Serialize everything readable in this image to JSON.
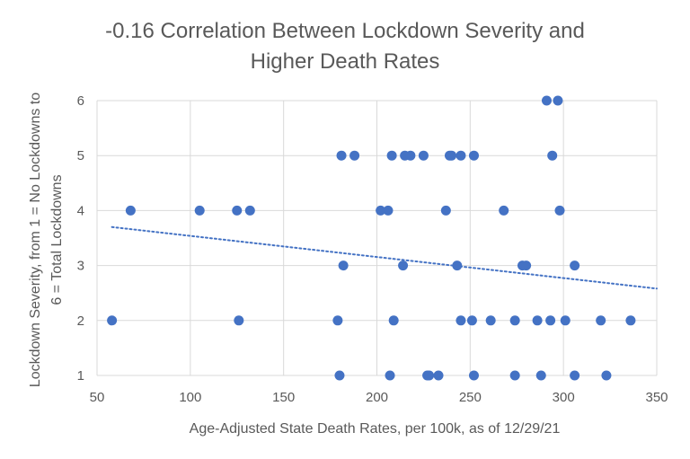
{
  "chart_data": {
    "type": "scatter",
    "title_line1": "-0.16 Correlation Between Lockdown Severity and",
    "title_line2": "Higher Death Rates",
    "xlabel": "Age-Adjusted State Death Rates, per 100k, as of 12/29/21",
    "ylabel_line1": "Lockdown Severity, from 1 = No Lockdowns to",
    "ylabel_line2": "6 = Total Lockdowns",
    "xlim": [
      50,
      350
    ],
    "ylim": [
      1,
      6
    ],
    "x_ticks": [
      "50",
      "100",
      "150",
      "200",
      "250",
      "300",
      "350"
    ],
    "y_ticks": [
      "1",
      "2",
      "3",
      "4",
      "5",
      "6"
    ],
    "grid": true,
    "marker_color": "#4472C4",
    "trendline": {
      "style": "dotted",
      "color": "#4472C4",
      "start": [
        58,
        3.7
      ],
      "end": [
        350,
        2.58
      ]
    },
    "points": [
      {
        "x": 58,
        "y": 2
      },
      {
        "x": 68,
        "y": 4
      },
      {
        "x": 105,
        "y": 4
      },
      {
        "x": 125,
        "y": 4
      },
      {
        "x": 126,
        "y": 2
      },
      {
        "x": 132,
        "y": 4
      },
      {
        "x": 179,
        "y": 2
      },
      {
        "x": 180,
        "y": 1
      },
      {
        "x": 181,
        "y": 5
      },
      {
        "x": 182,
        "y": 3
      },
      {
        "x": 188,
        "y": 5
      },
      {
        "x": 202,
        "y": 4
      },
      {
        "x": 206,
        "y": 4
      },
      {
        "x": 207,
        "y": 1
      },
      {
        "x": 208,
        "y": 5
      },
      {
        "x": 209,
        "y": 2
      },
      {
        "x": 214,
        "y": 3
      },
      {
        "x": 215,
        "y": 5
      },
      {
        "x": 218,
        "y": 5
      },
      {
        "x": 225,
        "y": 5
      },
      {
        "x": 227,
        "y": 1
      },
      {
        "x": 228,
        "y": 1
      },
      {
        "x": 233,
        "y": 1
      },
      {
        "x": 237,
        "y": 4
      },
      {
        "x": 239,
        "y": 5
      },
      {
        "x": 240,
        "y": 5
      },
      {
        "x": 243,
        "y": 3
      },
      {
        "x": 245,
        "y": 5
      },
      {
        "x": 245,
        "y": 2
      },
      {
        "x": 251,
        "y": 2
      },
      {
        "x": 252,
        "y": 5
      },
      {
        "x": 252,
        "y": 1
      },
      {
        "x": 261,
        "y": 2
      },
      {
        "x": 268,
        "y": 4
      },
      {
        "x": 274,
        "y": 2
      },
      {
        "x": 274,
        "y": 1
      },
      {
        "x": 278,
        "y": 3
      },
      {
        "x": 280,
        "y": 3
      },
      {
        "x": 286,
        "y": 2
      },
      {
        "x": 288,
        "y": 1
      },
      {
        "x": 291,
        "y": 6
      },
      {
        "x": 293,
        "y": 2
      },
      {
        "x": 294,
        "y": 5
      },
      {
        "x": 297,
        "y": 6
      },
      {
        "x": 298,
        "y": 4
      },
      {
        "x": 301,
        "y": 2
      },
      {
        "x": 306,
        "y": 3
      },
      {
        "x": 306,
        "y": 1
      },
      {
        "x": 320,
        "y": 2
      },
      {
        "x": 323,
        "y": 1
      },
      {
        "x": 336,
        "y": 2
      }
    ]
  }
}
